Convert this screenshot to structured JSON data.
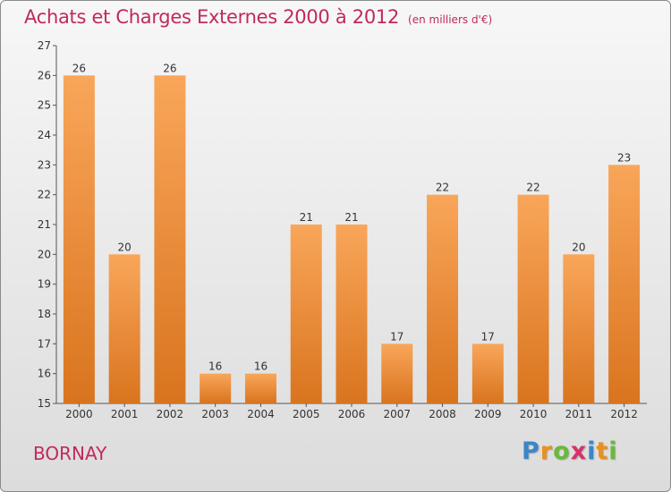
{
  "title": "Achats et Charges Externes 2000 à 2012",
  "unit": "(en milliers d'€)",
  "commune": "BORNAY",
  "logo": {
    "letters": [
      "P",
      "r",
      "o",
      "x",
      "i",
      "t",
      "i"
    ],
    "colors": [
      "#3a86c8",
      "#e8911f",
      "#6bb93a",
      "#d8326a",
      "#3a86c8",
      "#e8911f",
      "#6bb93a"
    ]
  },
  "colors": {
    "bar_light": "#f9a65a",
    "bar_dark": "#d9741e",
    "title": "#c02a5a"
  },
  "chart_data": {
    "type": "bar",
    "categories": [
      "2000",
      "2001",
      "2002",
      "2003",
      "2004",
      "2005",
      "2006",
      "2007",
      "2008",
      "2009",
      "2010",
      "2011",
      "2012"
    ],
    "values": [
      26,
      20,
      26,
      16,
      16,
      21,
      21,
      17,
      22,
      17,
      22,
      20,
      23
    ],
    "data_labels": [
      "26",
      "20",
      "26",
      "16",
      "16",
      "21",
      "21",
      "17",
      "22",
      "17",
      "22",
      "20",
      "23"
    ],
    "yticks": [
      "15",
      "16",
      "17",
      "18",
      "19",
      "20",
      "21",
      "22",
      "23",
      "24",
      "25",
      "26",
      "27"
    ],
    "ylim": [
      15,
      27
    ],
    "grid": false,
    "legend": "none"
  }
}
